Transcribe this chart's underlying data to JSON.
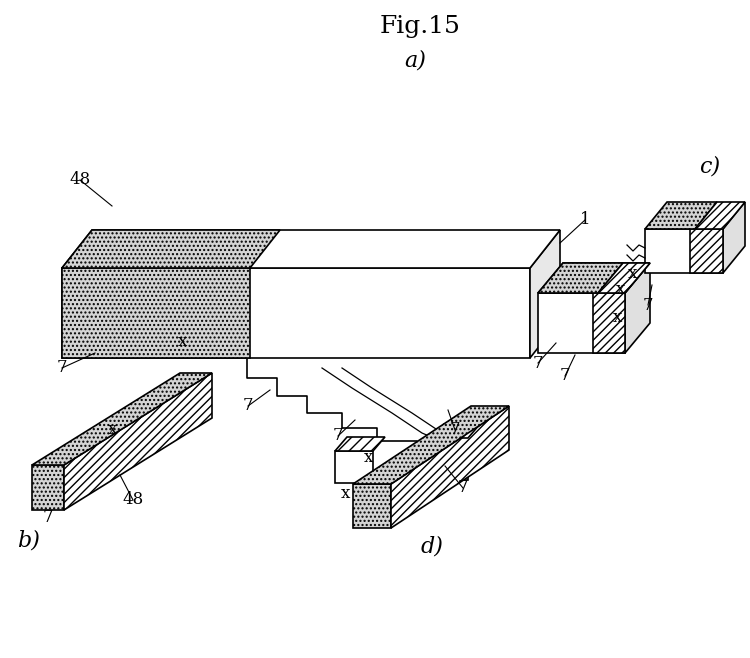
{
  "title": "Fig.15",
  "bg_color": "#ffffff",
  "line_color": "#000000",
  "label_a": "a)",
  "label_b": "b)",
  "label_c": "c)",
  "label_d": "d)",
  "ref_1": "1",
  "ref_7": "7",
  "ref_48": "48",
  "ref_x": "x",
  "title_fontsize": 18,
  "label_fontsize": 16,
  "annot_fontsize": 12
}
